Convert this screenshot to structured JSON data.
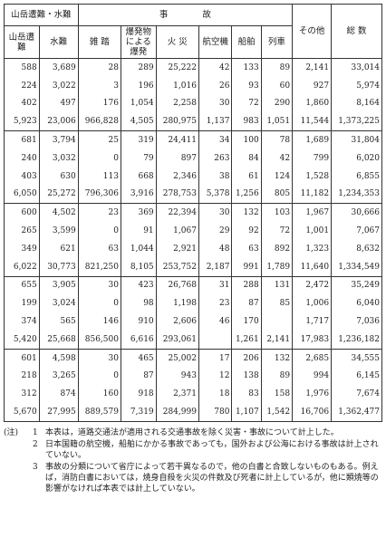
{
  "table": {
    "header": {
      "mountain_water": "山岳遭難・水難",
      "accident": "事　　　　故",
      "columns": [
        "山岳遭難",
        "水難",
        "雑 踏",
        "爆発物による爆発",
        "火 災",
        "航空機",
        "船舶",
        "列車",
        "その他",
        "総 数"
      ]
    },
    "rows": [
      [
        "588",
        "3,689",
        "28",
        "289",
        "25,222",
        "42",
        "133",
        "89",
        "2,141",
        "33,014"
      ],
      [
        "224",
        "3,022",
        "3",
        "196",
        "1,016",
        "26",
        "93",
        "60",
        "927",
        "5,974"
      ],
      [
        "402",
        "497",
        "176",
        "1,054",
        "2,258",
        "30",
        "72",
        "290",
        "1,860",
        "8,164"
      ],
      [
        "5,923",
        "23,006",
        "966,828",
        "4,505",
        "280,975",
        "1,137",
        "983",
        "1,051",
        "11,544",
        "1,373,225"
      ],
      [
        "681",
        "3,794",
        "25",
        "319",
        "24,411",
        "34",
        "100",
        "78",
        "1,689",
        "31,804"
      ],
      [
        "240",
        "3,032",
        "0",
        "79",
        "897",
        "263",
        "84",
        "42",
        "799",
        "6,020"
      ],
      [
        "403",
        "630",
        "113",
        "668",
        "2,346",
        "38",
        "61",
        "124",
        "1,528",
        "6,855"
      ],
      [
        "6,050",
        "25,272",
        "796,306",
        "3,916",
        "278,753",
        "5,378",
        "1,256",
        "805",
        "11,182",
        "1,234,353"
      ],
      [
        "600",
        "4,502",
        "23",
        "369",
        "22,394",
        "30",
        "132",
        "103",
        "1,967",
        "30,666"
      ],
      [
        "265",
        "3,599",
        "0",
        "91",
        "1,067",
        "29",
        "92",
        "72",
        "1,001",
        "7,067"
      ],
      [
        "349",
        "621",
        "63",
        "1,044",
        "2,921",
        "48",
        "63",
        "892",
        "1,323",
        "8,632"
      ],
      [
        "6,022",
        "30,773",
        "821,250",
        "8,105",
        "253,752",
        "2,187",
        "991",
        "1,789",
        "11,640",
        "1,334,549"
      ],
      [
        "655",
        "3,905",
        "30",
        "423",
        "26,768",
        "31",
        "288",
        "131",
        "2,472",
        "35,249"
      ],
      [
        "199",
        "3,024",
        "0",
        "98",
        "1,198",
        "23",
        "87",
        "85",
        "1,006",
        "6,040"
      ],
      [
        "374",
        "565",
        "146",
        "910",
        "2,606",
        "46",
        "170",
        null,
        "1,717",
        "7,036"
      ],
      [
        "5,420",
        "25,668",
        "856,500",
        "6,616",
        "293,061",
        null,
        "1,261",
        "2,141",
        "17,983",
        "1,236,182"
      ],
      [
        "601",
        "4,598",
        "30",
        "465",
        "25,002",
        "17",
        "206",
        "132",
        "2,685",
        "34,555"
      ],
      [
        "218",
        "3,265",
        "0",
        "87",
        "943",
        "12",
        "138",
        "89",
        "994",
        "6,145"
      ],
      [
        "312",
        "874",
        "160",
        "918",
        "2,371",
        "18",
        "83",
        "158",
        "1,976",
        "7,674"
      ],
      [
        "5,670",
        "27,995",
        "889,579",
        "7,319",
        "284,999",
        "780",
        "1,107",
        "1,542",
        "16,706",
        "1,362,477"
      ]
    ]
  },
  "notes": {
    "label": "(注)",
    "items": [
      {
        "number": "1",
        "text": "本表は，道路交通法が適用される交通事故を除く災害・事故について計上した。"
      },
      {
        "number": "2",
        "text": "日本国籍の航空機，船舶にかかる事故であっても，国外および公海における事故は計上されていない。"
      },
      {
        "number": "3",
        "text": "事故の分類について省庁によって若干異なるので，他の白書と合致しないものもある。例えば，消防白書においては，焼身自殺を火災の件数及び死者に計上しているが，他に類焼等の影響がなければ本表では計上していない。"
      }
    ]
  }
}
